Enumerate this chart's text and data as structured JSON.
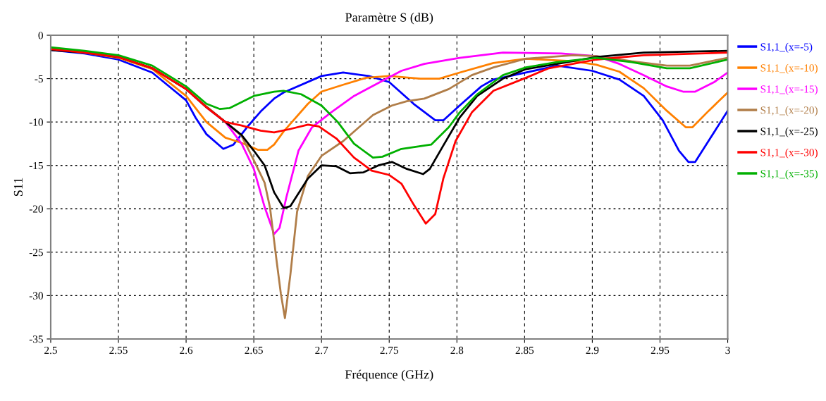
{
  "chart_data": {
    "type": "line",
    "title": "Paramètre S (dB)",
    "xlabel": "Fréquence (GHz)",
    "ylabel": "S11",
    "xlim": [
      2.5,
      3
    ],
    "ylim": [
      -35,
      0
    ],
    "xticks": [
      2.5,
      2.55,
      2.6,
      2.65,
      2.7,
      2.75,
      2.8,
      2.85,
      2.9,
      2.95,
      3
    ],
    "yticks": [
      -35,
      -30,
      -25,
      -20,
      -15,
      -10,
      -5,
      0
    ],
    "grid": true,
    "legend": "right",
    "line_style": "solid",
    "marker": "none",
    "series": [
      {
        "name": "S1,1_(x=-5)",
        "color": "#0000ff",
        "x": [
          2.5,
          2.525,
          2.55,
          2.575,
          2.6,
          2.607,
          2.615,
          2.6275,
          2.635,
          2.645,
          2.655,
          2.665,
          2.672,
          2.7,
          2.716,
          2.735,
          2.75,
          2.768,
          2.784,
          2.79,
          2.802,
          2.818,
          2.827,
          2.851,
          2.874,
          2.9,
          2.92,
          2.938,
          2.952,
          2.964,
          2.971,
          2.976,
          2.987,
          3.0
        ],
        "values": [
          -1.7,
          -2.1,
          -2.8,
          -4.3,
          -7.5,
          -9.5,
          -11.4,
          -13.1,
          -12.6,
          -10.6,
          -8.8,
          -7.3,
          -6.6,
          -4.7,
          -4.3,
          -4.7,
          -5.4,
          -7.9,
          -9.8,
          -9.8,
          -8.1,
          -5.9,
          -5.1,
          -4.3,
          -3.5,
          -4.1,
          -5.1,
          -7.0,
          -9.8,
          -13.3,
          -14.6,
          -14.6,
          -11.9,
          -8.7
        ]
      },
      {
        "name": "S1,1_(x=-10)",
        "color": "#ff8000",
        "x": [
          2.5,
          2.525,
          2.55,
          2.575,
          2.6,
          2.615,
          2.629,
          2.641,
          2.653,
          2.66,
          2.665,
          2.672,
          2.69,
          2.7,
          2.716,
          2.733,
          2.75,
          2.773,
          2.787,
          2.802,
          2.827,
          2.851,
          2.886,
          2.903,
          2.92,
          2.938,
          2.955,
          2.969,
          2.974,
          2.986,
          3.0
        ],
        "values": [
          -1.6,
          -2.0,
          -2.6,
          -3.9,
          -7.0,
          -10.0,
          -11.8,
          -12.4,
          -13.2,
          -13.2,
          -12.6,
          -11.1,
          -7.9,
          -6.5,
          -5.7,
          -4.9,
          -4.7,
          -5.0,
          -5.0,
          -4.3,
          -3.2,
          -2.7,
          -3.0,
          -3.4,
          -4.2,
          -6.1,
          -8.7,
          -10.6,
          -10.6,
          -8.7,
          -6.6
        ]
      },
      {
        "name": "S1,1_(x=-15)",
        "color": "#ff00ff",
        "x": [
          2.615,
          2.629,
          2.641,
          2.65,
          2.658,
          2.665,
          2.669,
          2.674,
          2.683,
          2.693,
          2.707,
          2.724,
          2.742,
          2.759,
          2.776,
          2.802,
          2.834,
          2.877,
          2.903,
          2.92,
          2.938,
          2.955,
          2.967,
          2.976,
          2.99,
          3.0
        ],
        "values": [
          -8.3,
          -10.0,
          -12.5,
          -15.4,
          -19.8,
          -22.9,
          -22.2,
          -18.7,
          -13.3,
          -10.6,
          -8.9,
          -7.0,
          -5.5,
          -4.1,
          -3.3,
          -2.6,
          -2.0,
          -2.1,
          -2.4,
          -3.3,
          -4.6,
          -5.9,
          -6.5,
          -6.5,
          -5.4,
          -4.3
        ]
      },
      {
        "name": "S1,1_(x=-20)",
        "color": "#b07d48",
        "x": [
          2.5,
          2.525,
          2.55,
          2.575,
          2.6,
          2.615,
          2.629,
          2.641,
          2.65,
          2.658,
          2.662,
          2.667,
          2.67,
          2.673,
          2.677,
          2.682,
          2.69,
          2.7,
          2.716,
          2.724,
          2.738,
          2.752,
          2.763,
          2.776,
          2.794,
          2.811,
          2.827,
          2.851,
          2.886,
          2.903,
          2.929,
          2.955,
          2.972,
          3.0
        ],
        "values": [
          -1.6,
          -2.0,
          -2.5,
          -3.8,
          -6.2,
          -8.2,
          -10.0,
          -11.6,
          -14.4,
          -17.0,
          -19.9,
          -26.2,
          -29.8,
          -32.6,
          -27.6,
          -20.3,
          -16.2,
          -13.9,
          -12.2,
          -11.1,
          -9.2,
          -8.1,
          -7.6,
          -7.3,
          -6.2,
          -4.6,
          -3.7,
          -2.7,
          -2.3,
          -2.4,
          -3.0,
          -3.5,
          -3.5,
          -2.6
        ]
      },
      {
        "name": "S1,1_(x=-25)",
        "color": "#000000",
        "x": [
          2.5,
          2.525,
          2.55,
          2.575,
          2.6,
          2.615,
          2.629,
          2.641,
          2.65,
          2.658,
          2.665,
          2.672,
          2.677,
          2.69,
          2.7,
          2.711,
          2.721,
          2.731,
          2.742,
          2.752,
          2.763,
          2.775,
          2.78,
          2.79,
          2.802,
          2.815,
          2.834,
          2.851,
          2.874,
          2.903,
          2.938,
          3.0
        ],
        "values": [
          -1.7,
          -2.0,
          -2.5,
          -3.8,
          -6.2,
          -8.3,
          -10.0,
          -11.5,
          -13.3,
          -15.0,
          -18.1,
          -19.9,
          -19.7,
          -16.5,
          -15.0,
          -15.1,
          -15.9,
          -15.8,
          -15.0,
          -14.6,
          -15.4,
          -16.0,
          -15.4,
          -12.7,
          -9.5,
          -7.0,
          -5.0,
          -3.9,
          -3.3,
          -2.5,
          -2.0,
          -1.8
        ]
      },
      {
        "name": "S1,1_(x=-30)",
        "color": "#ff0000",
        "x": [
          2.5,
          2.525,
          2.55,
          2.575,
          2.6,
          2.615,
          2.629,
          2.641,
          2.655,
          2.665,
          2.677,
          2.69,
          2.698,
          2.711,
          2.724,
          2.737,
          2.75,
          2.759,
          2.768,
          2.777,
          2.784,
          2.79,
          2.799,
          2.811,
          2.827,
          2.851,
          2.868,
          2.903,
          2.938,
          3.0
        ],
        "values": [
          -1.6,
          -2.0,
          -2.5,
          -3.8,
          -6.2,
          -8.3,
          -10.0,
          -10.4,
          -11.0,
          -11.2,
          -10.8,
          -10.3,
          -10.5,
          -11.9,
          -14.1,
          -15.6,
          -16.1,
          -17.1,
          -19.5,
          -21.7,
          -20.6,
          -16.5,
          -12.2,
          -8.9,
          -6.4,
          -4.9,
          -3.8,
          -2.8,
          -2.3,
          -2.0
        ]
      },
      {
        "name": "S1,1_(x=-35)",
        "color": "#00b000",
        "x": [
          2.5,
          2.525,
          2.55,
          2.575,
          2.6,
          2.615,
          2.625,
          2.632,
          2.65,
          2.665,
          2.672,
          2.685,
          2.7,
          2.712,
          2.724,
          2.738,
          2.745,
          2.759,
          2.781,
          2.794,
          2.802,
          2.815,
          2.834,
          2.851,
          2.874,
          2.903,
          2.929,
          2.955,
          2.972,
          3.0
        ],
        "values": [
          -1.4,
          -1.8,
          -2.3,
          -3.5,
          -5.9,
          -7.9,
          -8.5,
          -8.4,
          -7.0,
          -6.5,
          -6.4,
          -6.8,
          -8.1,
          -10.0,
          -12.5,
          -14.1,
          -14.0,
          -13.1,
          -12.6,
          -10.6,
          -8.9,
          -6.8,
          -4.6,
          -3.7,
          -3.1,
          -2.6,
          -3.1,
          -3.8,
          -3.8,
          -2.8
        ]
      }
    ]
  }
}
